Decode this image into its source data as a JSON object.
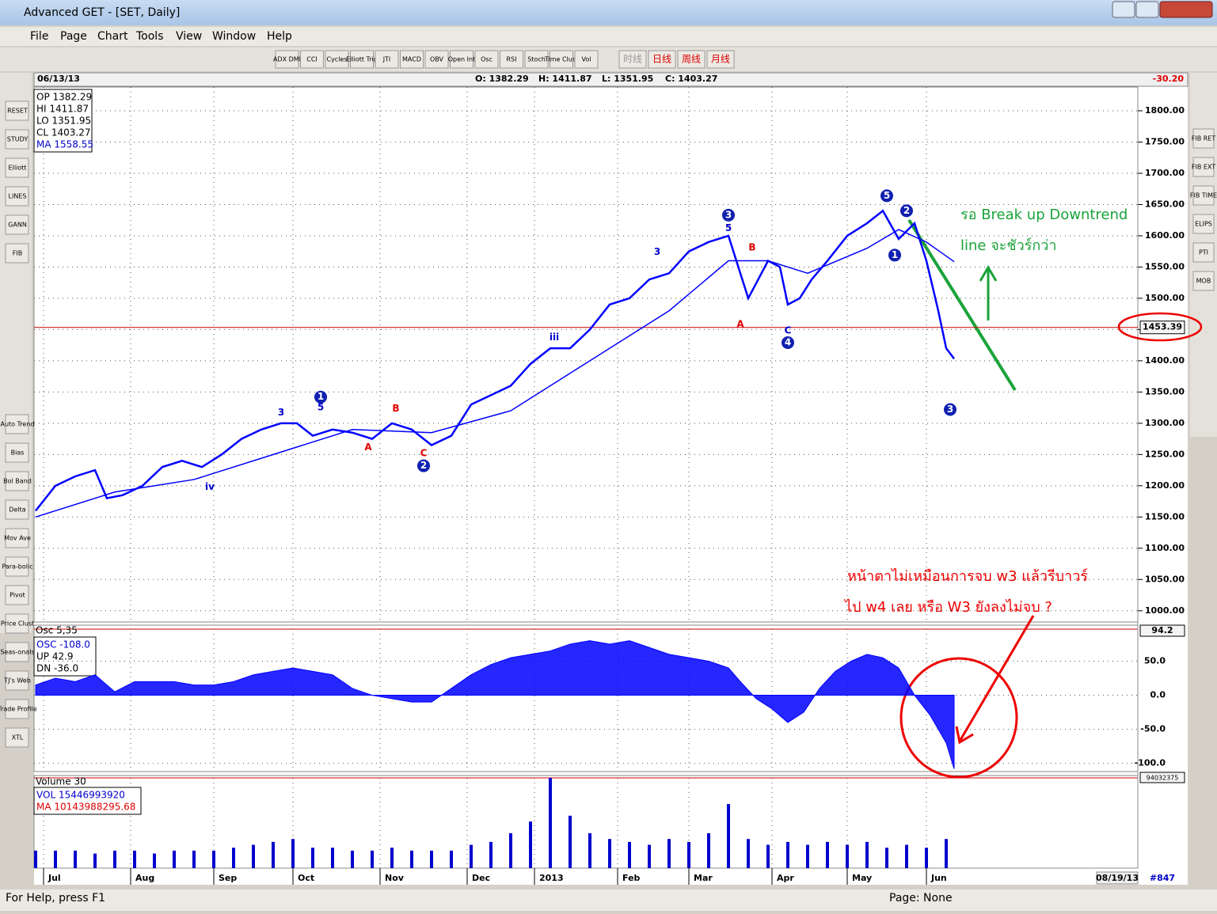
{
  "window": {
    "title": "Advanced GET - [SET, Daily]"
  },
  "menu": [
    "File",
    "Page",
    "Chart",
    "Tools",
    "View",
    "Window",
    "Help"
  ],
  "toolbar": [
    "ADX DMI",
    "CCI",
    "Cycles",
    "Elliott Trig",
    "JTI",
    "MACD",
    "OBV",
    "Open Int",
    "Osc",
    "RSI",
    "Stoch",
    "Time Clust",
    "Vol"
  ],
  "timeframes": [
    "时线",
    "日线",
    "周线",
    "月线"
  ],
  "left_tools": [
    "RESET",
    "STUDY",
    "Elliott",
    "LINES",
    "GANN",
    "FIB",
    "Auto Trend",
    "Bias",
    "Bol Band",
    "Delta",
    "Mov Ave",
    "Para-bolic",
    "Pivot",
    "Price Clust",
    "Seas-onals",
    "TJ's Web",
    "Trade Profile",
    "XTL"
  ],
  "right_tools": [
    "FIB RET",
    "FIB EXT",
    "FIB TIME",
    "ELIPS",
    "PTI",
    "MOB"
  ],
  "header": {
    "date": "06/13/13",
    "ohlc": [
      "O: 1382.29",
      "H: 1411.87",
      "L: 1351.95",
      "C: 1403.27"
    ],
    "change": "-30.20"
  },
  "info_box": [
    "OP 1382.29",
    "HI  1411.87",
    "LO 1351.95",
    "CL 1403.27",
    "MA 1558.55"
  ],
  "chart_data": {
    "type": "line",
    "xlim": [
      0,
      278
    ],
    "xticks": [
      {
        "value": 2,
        "label": "Jul"
      },
      {
        "value": 24,
        "label": "Aug"
      },
      {
        "value": 45,
        "label": "Sep"
      },
      {
        "value": 65,
        "label": "Oct"
      },
      {
        "value": 87,
        "label": "Nov"
      },
      {
        "value": 109,
        "label": "Dec"
      },
      {
        "value": 126,
        "label": "2013"
      },
      {
        "value": 147,
        "label": "Feb"
      },
      {
        "value": 165,
        "label": "Mar"
      },
      {
        "value": 186,
        "label": "Apr"
      },
      {
        "value": 205,
        "label": "May"
      },
      {
        "value": 225,
        "label": "Jun"
      }
    ],
    "ylim": [
      982,
      1838
    ],
    "yticks": [
      {
        "value": 1000,
        "label": "1000.00"
      },
      {
        "value": 1050,
        "label": "1050.00"
      },
      {
        "value": 1100,
        "label": "1100.00"
      },
      {
        "value": 1150,
        "label": "1150.00"
      },
      {
        "value": 1200,
        "label": "1200.00"
      },
      {
        "value": 1250,
        "label": "1250.00"
      },
      {
        "value": 1300,
        "label": "1300.00"
      },
      {
        "value": 1350,
        "label": "1350.00"
      },
      {
        "value": 1400,
        "label": "1400.00"
      },
      {
        "value": 1450,
        "label": "1450.00"
      },
      {
        "value": 1500,
        "label": "1500.00"
      },
      {
        "value": 1550,
        "label": "1550.00"
      },
      {
        "value": 1600,
        "label": "1600.00"
      },
      {
        "value": 1650,
        "label": "1650.00"
      },
      {
        "value": 1700,
        "label": "1700.00"
      },
      {
        "value": 1750,
        "label": "1750.00"
      },
      {
        "value": 1800,
        "label": "1800.00"
      }
    ],
    "grid": true,
    "price": {
      "color": "#0000ff",
      "x": [
        0,
        5,
        10,
        15,
        18,
        22,
        27,
        32,
        37,
        42,
        47,
        52,
        57,
        62,
        66,
        70,
        75,
        80,
        85,
        90,
        95,
        100,
        105,
        110,
        115,
        120,
        125,
        130,
        135,
        140,
        145,
        150,
        155,
        160,
        165,
        170,
        175,
        178,
        180,
        185,
        188,
        190,
        193,
        196,
        200,
        205,
        210,
        214,
        218,
        222,
        225,
        228,
        230,
        232
      ],
      "values": [
        1160,
        1200,
        1215,
        1225,
        1180,
        1185,
        1200,
        1230,
        1240,
        1230,
        1250,
        1275,
        1290,
        1300,
        1300,
        1280,
        1290,
        1285,
        1275,
        1300,
        1290,
        1265,
        1280,
        1330,
        1345,
        1360,
        1395,
        1420,
        1420,
        1450,
        1490,
        1500,
        1530,
        1540,
        1575,
        1590,
        1600,
        1540,
        1500,
        1560,
        1550,
        1490,
        1500,
        1530,
        1560,
        1600,
        1620,
        1640,
        1595,
        1620,
        1560,
        1480,
        1420,
        1403.27
      ]
    },
    "ma": {
      "color": "#0000ff",
      "x": [
        0,
        20,
        40,
        60,
        80,
        100,
        120,
        140,
        160,
        175,
        185,
        195,
        210,
        218,
        225,
        232
      ],
      "values": [
        1150,
        1190,
        1210,
        1250,
        1290,
        1285,
        1320,
        1400,
        1480,
        1560,
        1560,
        1540,
        1580,
        1610,
        1590,
        1558.55
      ]
    },
    "current": {
      "value": 1453.39,
      "label": "1453.39"
    },
    "waves": [
      {
        "label": "1",
        "x": 72,
        "y": 1342,
        "circled": true
      },
      {
        "label": "2",
        "x": 98,
        "y": 1232,
        "circled": true
      },
      {
        "label": "3",
        "x": 175,
        "y": 1633,
        "circled": true
      },
      {
        "label": "4",
        "x": 190,
        "y": 1429,
        "circled": true
      },
      {
        "label": "5",
        "x": 215,
        "y": 1664,
        "circled": true
      },
      {
        "label": "2",
        "x": 220,
        "y": 1640,
        "circled": true
      },
      {
        "label": "1",
        "x": 217,
        "y": 1569,
        "circled": true
      },
      {
        "label": "3",
        "x": 231,
        "y": 1322,
        "circled": true
      },
      {
        "label": "A",
        "x": 84,
        "y": 1261,
        "color": "#e00000"
      },
      {
        "label": "B",
        "x": 91,
        "y": 1323,
        "color": "#e00000"
      },
      {
        "label": "C",
        "x": 98,
        "y": 1252,
        "color": "#e00000"
      },
      {
        "label": "A",
        "x": 178,
        "y": 1458,
        "color": "#e00000"
      },
      {
        "label": "B",
        "x": 181,
        "y": 1581,
        "color": "#e00000"
      },
      {
        "label": "C",
        "x": 190,
        "y": 1448,
        "color": "#0000cc"
      },
      {
        "label": "3",
        "x": 157,
        "y": 1574,
        "color": "#0000cc"
      },
      {
        "label": "5",
        "x": 175,
        "y": 1612,
        "color": "#0000cc"
      },
      {
        "label": "iii",
        "x": 131,
        "y": 1437,
        "color": "#0000cc"
      },
      {
        "label": "iv",
        "x": 44,
        "y": 1198,
        "color": "#0000cc"
      },
      {
        "label": "3",
        "x": 62,
        "y": 1317,
        "color": "#0000cc"
      },
      {
        "label": "5",
        "x": 72,
        "y": 1325,
        "color": "#0000cc"
      }
    ]
  },
  "oscillator": {
    "title": "Osc 5,35",
    "info": [
      "OSC -108.0",
      "UP  42.9",
      "DN  -36.0"
    ],
    "last": "94.2",
    "color": "#0000ff",
    "ylim": [
      -112,
      97
    ],
    "yticks": [
      {
        "value": 50,
        "label": "50.0"
      },
      {
        "value": 0,
        "label": "0.0"
      },
      {
        "value": -50,
        "label": "-50.0"
      },
      {
        "value": -100,
        "label": "-100.0"
      }
    ],
    "x": [
      0,
      5,
      10,
      15,
      20,
      25,
      30,
      35,
      40,
      45,
      50,
      55,
      60,
      65,
      70,
      75,
      80,
      85,
      90,
      95,
      100,
      105,
      110,
      115,
      120,
      125,
      130,
      135,
      140,
      145,
      150,
      155,
      160,
      165,
      170,
      175,
      178,
      182,
      186,
      190,
      194,
      198,
      202,
      206,
      210,
      214,
      218,
      222,
      226,
      230,
      232
    ],
    "values": [
      15,
      25,
      20,
      30,
      5,
      20,
      20,
      20,
      15,
      15,
      20,
      30,
      35,
      40,
      35,
      30,
      10,
      0,
      -5,
      -10,
      -10,
      10,
      30,
      45,
      55,
      60,
      65,
      75,
      80,
      75,
      80,
      70,
      60,
      55,
      50,
      40,
      20,
      -5,
      -20,
      -40,
      -25,
      10,
      35,
      50,
      60,
      55,
      40,
      0,
      -30,
      -70,
      -108
    ]
  },
  "volume": {
    "title": "Volume 30",
    "info": [
      "VOL 15446993920",
      "MA  10143988295.68"
    ],
    "last": "94032375",
    "color": "#0000cc",
    "ylim": [
      0,
      31
    ],
    "x": [
      0,
      5,
      10,
      15,
      20,
      25,
      30,
      35,
      40,
      45,
      50,
      55,
      60,
      65,
      70,
      75,
      80,
      85,
      90,
      95,
      100,
      105,
      110,
      115,
      120,
      125,
      130,
      135,
      140,
      145,
      150,
      155,
      160,
      165,
      170,
      175,
      180,
      185,
      190,
      195,
      200,
      205,
      210,
      215,
      220,
      225,
      230
    ],
    "values": [
      6,
      6,
      6,
      5,
      6,
      6,
      5,
      6,
      6,
      6,
      7,
      8,
      9,
      10,
      7,
      7,
      6,
      6,
      7,
      6,
      6,
      6,
      8,
      9,
      12,
      16,
      31,
      18,
      12,
      10,
      9,
      8,
      10,
      9,
      12,
      22,
      10,
      8,
      9,
      8,
      9,
      8,
      9,
      7,
      8,
      7,
      10
    ]
  },
  "annotations": [
    "รอ Break up Downtrend",
    "line จะชัวร์กว่า",
    "หน้าตาไม่เหมือนการจบ w3 แล้วรีบาวร์",
    "ไป w4 เลย หรือ W3 ยังลงไม่จบ ?"
  ],
  "footer": {
    "date": "08/19/13",
    "count": "#847"
  },
  "status": {
    "help": "For Help, press F1",
    "page": "Page: None"
  }
}
